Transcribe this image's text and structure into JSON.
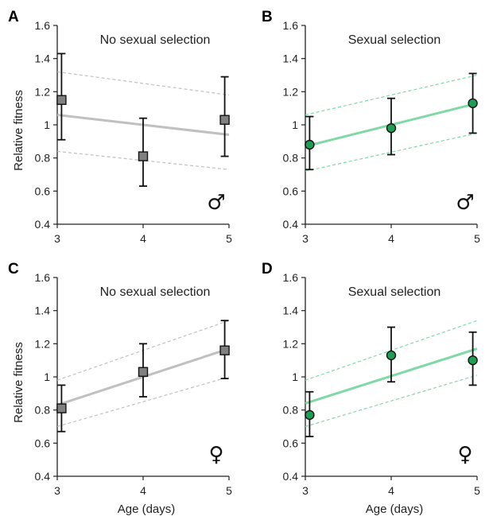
{
  "figure": {
    "x_axis_label": "Age (days)",
    "y_axis_label": "Relative fitness"
  },
  "colors": {
    "no_selection_line": "#c0c0c0",
    "no_selection_marker": "#808080",
    "selection_line": "#7fd9a6",
    "selection_marker": "#1e9e55",
    "error_bar": "#111111",
    "axis": "#222222"
  },
  "chart_data": [
    {
      "panel": "A",
      "title": "No sexual selection",
      "symbol": "♂",
      "type": "line",
      "variant": "no_selection",
      "xlim": [
        3,
        5
      ],
      "ylim": [
        0.4,
        1.6
      ],
      "xticks": [
        3,
        4,
        5
      ],
      "yticks": [
        0.4,
        0.6,
        0.8,
        1,
        1.2,
        1.4,
        1.6
      ],
      "ytick_labels": [
        "0.4",
        "0.6",
        "0.8",
        "1",
        "1.2",
        "1.4",
        "1.6"
      ],
      "points": [
        {
          "x": 3.05,
          "y": 1.15,
          "lo": 0.91,
          "hi": 1.43
        },
        {
          "x": 4.0,
          "y": 0.81,
          "lo": 0.63,
          "hi": 1.04
        },
        {
          "x": 4.95,
          "y": 1.03,
          "lo": 0.81,
          "hi": 1.29
        }
      ],
      "fit": [
        [
          3.0,
          1.06
        ],
        [
          5.0,
          0.94
        ]
      ],
      "ci_upper": [
        [
          3.0,
          1.32
        ],
        [
          5.0,
          1.18
        ]
      ],
      "ci_lower": [
        [
          3.0,
          0.84
        ],
        [
          5.0,
          0.73
        ]
      ]
    },
    {
      "panel": "B",
      "title": "Sexual selection",
      "symbol": "♂",
      "type": "line",
      "variant": "selection",
      "xlim": [
        3,
        5
      ],
      "ylim": [
        0.4,
        1.6
      ],
      "xticks": [
        3,
        4,
        5
      ],
      "yticks": [
        0.4,
        0.6,
        0.8,
        1,
        1.2,
        1.4,
        1.6
      ],
      "ytick_labels": [
        "0.4",
        "0.6",
        "0.8",
        "1",
        "1.2",
        "1.4",
        "1.6"
      ],
      "points": [
        {
          "x": 3.05,
          "y": 0.88,
          "lo": 0.73,
          "hi": 1.05
        },
        {
          "x": 4.0,
          "y": 0.98,
          "lo": 0.82,
          "hi": 1.16
        },
        {
          "x": 4.95,
          "y": 1.13,
          "lo": 0.95,
          "hi": 1.31
        }
      ],
      "fit": [
        [
          3.0,
          0.87
        ],
        [
          5.0,
          1.13
        ]
      ],
      "ci_upper": [
        [
          3.0,
          1.06
        ],
        [
          5.0,
          1.3
        ]
      ],
      "ci_lower": [
        [
          3.0,
          0.72
        ],
        [
          5.0,
          0.95
        ]
      ]
    },
    {
      "panel": "C",
      "title": "No sexual selection",
      "symbol": "♀",
      "type": "line",
      "variant": "no_selection",
      "xlim": [
        3,
        5
      ],
      "ylim": [
        0.4,
        1.6
      ],
      "xticks": [
        3,
        4,
        5
      ],
      "yticks": [
        0.4,
        0.6,
        0.8,
        1,
        1.2,
        1.4,
        1.6
      ],
      "ytick_labels": [
        "0.4",
        "0.6",
        "0.8",
        "1",
        "1.2",
        "1.4",
        "1.6"
      ],
      "points": [
        {
          "x": 3.05,
          "y": 0.81,
          "lo": 0.67,
          "hi": 0.95
        },
        {
          "x": 4.0,
          "y": 1.03,
          "lo": 0.88,
          "hi": 1.2
        },
        {
          "x": 4.95,
          "y": 1.16,
          "lo": 0.99,
          "hi": 1.34
        }
      ],
      "fit": [
        [
          3.0,
          0.83
        ],
        [
          5.0,
          1.17
        ]
      ],
      "ci_upper": [
        [
          3.0,
          0.98
        ],
        [
          5.0,
          1.34
        ]
      ],
      "ci_lower": [
        [
          3.0,
          0.7
        ],
        [
          5.0,
          1.0
        ]
      ]
    },
    {
      "panel": "D",
      "title": "Sexual selection",
      "symbol": "♀",
      "type": "line",
      "variant": "selection",
      "xlim": [
        3,
        5
      ],
      "ylim": [
        0.4,
        1.6
      ],
      "xticks": [
        3,
        4,
        5
      ],
      "yticks": [
        0.4,
        0.6,
        0.8,
        1,
        1.2,
        1.4,
        1.6
      ],
      "ytick_labels": [
        "0.4",
        "0.6",
        "0.8",
        "1",
        "1.2",
        "1.4",
        "1.6"
      ],
      "points": [
        {
          "x": 3.05,
          "y": 0.77,
          "lo": 0.64,
          "hi": 0.91
        },
        {
          "x": 4.0,
          "y": 1.13,
          "lo": 0.97,
          "hi": 1.3
        },
        {
          "x": 4.95,
          "y": 1.1,
          "lo": 0.95,
          "hi": 1.27
        }
      ],
      "fit": [
        [
          3.0,
          0.84
        ],
        [
          5.0,
          1.17
        ]
      ],
      "ci_upper": [
        [
          3.0,
          0.98
        ],
        [
          5.0,
          1.34
        ]
      ],
      "ci_lower": [
        [
          3.0,
          0.7
        ],
        [
          5.0,
          1.01
        ]
      ]
    }
  ]
}
